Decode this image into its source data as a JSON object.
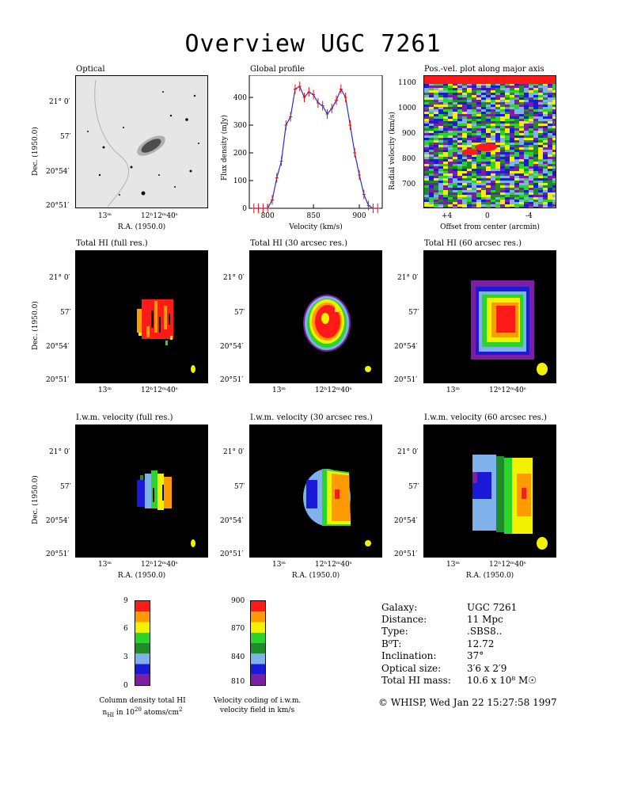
{
  "title": "Overview UGC 7261",
  "panels": {
    "optical": "Optical",
    "global_profile": "Global profile",
    "pv": "Pos.-vel. plot along major axis",
    "hi_full": "Total HI (full res.)",
    "hi_30": "Total HI (30 arcsec res.)",
    "hi_60": "Total HI (60 arcsec res.)",
    "vel_full": "I.w.m. velocity (full res.)",
    "vel_30": "I.w.m. velocity (30 arcsec res.)",
    "vel_60": "I.w.m. velocity (60 arcsec res.)"
  },
  "axes": {
    "dec_label": "Dec. (1950.0)",
    "ra_label": "R.A. (1950.0)",
    "dec_ticks": [
      "21° 0′",
      "57′",
      "20°54′",
      "20°51′"
    ],
    "ra_ticks": [
      "13ᵐ",
      "12ʰ12ᵐ40ˢ"
    ],
    "flux_label": "Flux density (mJy)",
    "velocity_label": "Velocity (km/s)",
    "radial_velocity_label": "Radial velocity (km/s)",
    "offset_label": "Offset from center (arcmin)",
    "offset_ticks": [
      "+4",
      "0",
      "-4"
    ],
    "pv_vel_ticks": [
      "700",
      "800",
      "900",
      "1000",
      "1100"
    ]
  },
  "chart_data": {
    "type": "line",
    "title": "Global profile",
    "xlabel": "Velocity (km/s)",
    "ylabel": "Flux density (mJy)",
    "xlim": [
      780,
      925
    ],
    "ylim": [
      0,
      480
    ],
    "xticks": [
      800,
      850,
      900
    ],
    "yticks": [
      0,
      100,
      200,
      300,
      400
    ],
    "x": [
      785,
      790,
      795,
      800,
      805,
      810,
      815,
      820,
      825,
      830,
      835,
      840,
      845,
      850,
      855,
      860,
      865,
      870,
      875,
      880,
      885,
      890,
      895,
      900,
      905,
      910,
      915,
      920
    ],
    "y": [
      0,
      0,
      0,
      0,
      30,
      110,
      170,
      300,
      330,
      430,
      440,
      400,
      420,
      410,
      380,
      370,
      340,
      360,
      390,
      430,
      400,
      300,
      200,
      120,
      50,
      10,
      0,
      0
    ]
  },
  "colorbars": {
    "density": {
      "ticks": [
        "0",
        "3",
        "6",
        "9"
      ],
      "caption_line1": "Column density total HI",
      "caption_line2": "n_HI in 10^20 atoms/cm^2",
      "colors": [
        "#7a1fa2",
        "#1a1ad8",
        "#7fb2ea",
        "#1e8c2a",
        "#2ad42a",
        "#f2f200",
        "#ff9a00",
        "#ff1a1a"
      ]
    },
    "velocity": {
      "ticks": [
        "810",
        "840",
        "870",
        "900"
      ],
      "caption_line1": "Velocity coding of i.w.m.",
      "caption_line2": "velocity field in km/s",
      "colors": [
        "#7a1fa2",
        "#1a1ad8",
        "#7fb2ea",
        "#1e8c2a",
        "#2ad42a",
        "#f2f200",
        "#ff9a00",
        "#ff1a1a"
      ]
    }
  },
  "info": {
    "labels": [
      "Galaxy:",
      "Distance:",
      "Type:",
      "B⁰T:",
      "Inclination:",
      "Optical size:",
      "Total HI mass:"
    ],
    "values": [
      "UGC 7261",
      "11 Mpc",
      ".SBS8..",
      "12.72",
      "37°",
      "3′6 x 2′9",
      "10.6 x 10⁸ M☉"
    ]
  },
  "footer": "© WHISP, Wed Jan 22 15:27:58 1997"
}
